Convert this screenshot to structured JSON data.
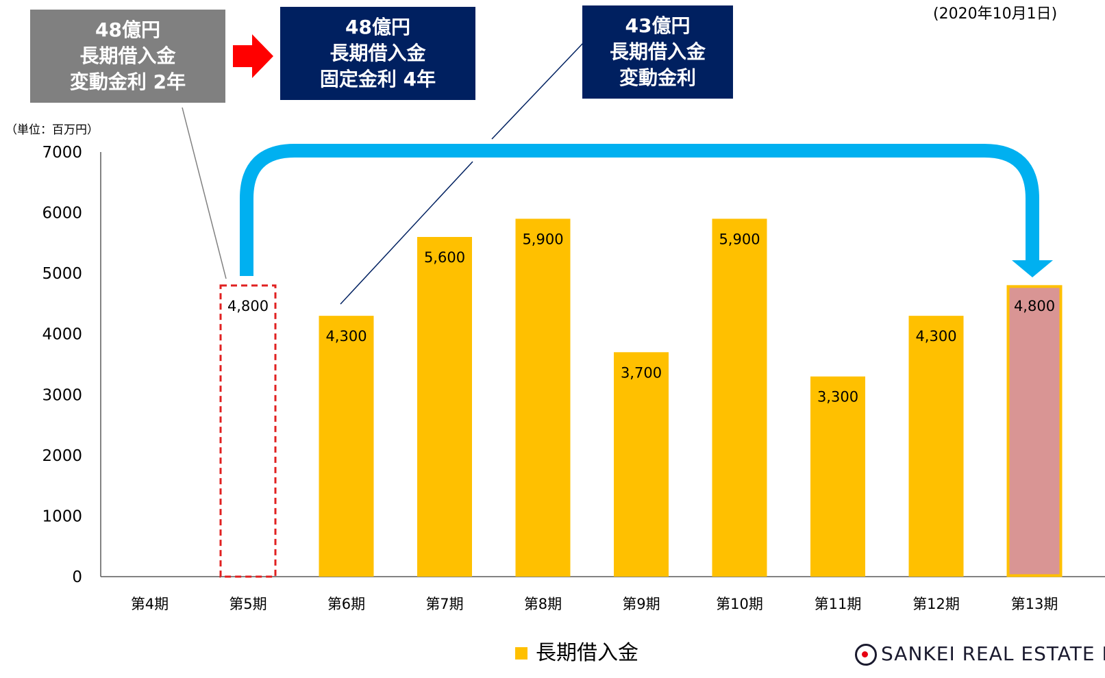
{
  "header": {
    "date_note": "(2020年10月1日)",
    "unit_label": "（単位：百万円）"
  },
  "annotations": [
    {
      "id": "box-a",
      "lines": [
        "48億円",
        "長期借入金",
        "変動金利 2年"
      ],
      "color": "#808080"
    },
    {
      "id": "box-b",
      "lines": [
        "48億円",
        "長期借入金",
        "固定金利 4年"
      ],
      "color": "#002060"
    },
    {
      "id": "box-c",
      "lines": [
        "43億円",
        "長期借入金",
        "変動金利"
      ],
      "color": "#002060"
    }
  ],
  "colors": {
    "bar": "#FFC000",
    "highlight_fill": "#D99594",
    "dashed_outline": "#E02020",
    "flow_arrow": "#00B0F0",
    "transition_arrow": "#FF0000",
    "axis": "#595959"
  },
  "chart_data": {
    "type": "bar",
    "categories": [
      "第4期",
      "第5期",
      "第6期",
      "第7期",
      "第8期",
      "第9期",
      "第10期",
      "第11期",
      "第12期",
      "第13期"
    ],
    "series": [
      {
        "name": "長期借入金",
        "values": [
          null,
          4800,
          4300,
          5600,
          5900,
          3700,
          5900,
          3300,
          4300,
          4800
        ]
      }
    ],
    "data_labels": [
      "",
      "4,800",
      "4,300",
      "5,600",
      "5,900",
      "3,700",
      "5,900",
      "3,300",
      "4,300",
      "4,800"
    ],
    "ylim": [
      0,
      7000
    ],
    "yticks": [
      0,
      1000,
      2000,
      3000,
      4000,
      5000,
      6000,
      7000
    ],
    "ylabel": "（単位：百万円）",
    "legend": {
      "label": "長期借入金",
      "placement": "bottom-center"
    },
    "grid": false,
    "styles": [
      "none",
      "dashed-outline",
      "solid",
      "solid",
      "solid",
      "solid",
      "solid",
      "solid",
      "solid",
      "highlight"
    ]
  },
  "footer": {
    "logo_text": "SANKEI REAL ESTATE I"
  }
}
